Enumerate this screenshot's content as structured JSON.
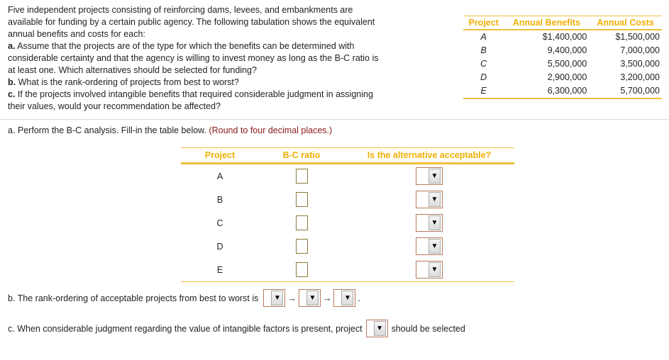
{
  "intro": {
    "lines": [
      "Five independent projects consisting of reinforcing dams, levees, and embankments are",
      "available for funding by a certain public agency. The following tabulation shows the equivalent",
      "annual benefits and costs for each:"
    ],
    "a_label": "a.",
    "a_text1": " Assume that the projects are of the type for which the benefits can be determined with",
    "a_text2": "considerable certainty and that the agency is willing to invest money as long as the B-C ratio is",
    "a_text3": "at least one. Which alternatives should be selected for funding?",
    "b_label": "b.",
    "b_text": " What is the rank-ordering of projects from best to worst?",
    "c_label": "c.",
    "c_text1": " If the projects involved intangible benefits that required considerable judgment in assigning",
    "c_text2": "their values, would your recommendation be affected?"
  },
  "given_table": {
    "headers": [
      "Project",
      "Annual Benefits",
      "Annual Costs"
    ],
    "rows": [
      [
        "A",
        "$1,400,000",
        "$1,500,000"
      ],
      [
        "B",
        "9,400,000",
        "7,000,000"
      ],
      [
        "C",
        "5,500,000",
        "3,500,000"
      ],
      [
        "D",
        "2,900,000",
        "3,200,000"
      ],
      [
        "E",
        "6,300,000",
        "5,700,000"
      ]
    ]
  },
  "part_a": {
    "text": "a. Perform the B-C analysis. Fill-in the table below.",
    "note": "(Round to four decimal places.)"
  },
  "answer_table": {
    "headers": [
      "Project",
      "B-C ratio",
      "Is the alternative acceptable?"
    ],
    "projects": [
      "A",
      "B",
      "C",
      "D",
      "E"
    ]
  },
  "part_b": {
    "text": "b. The rank-ordering of acceptable projects from best to worst is",
    "arrow": "→",
    "end": "."
  },
  "part_c": {
    "text": "c. When considerable judgment regarding the value of intangible factors is present, project",
    "after": "should be selected"
  },
  "dropdown_glyph": "▼",
  "colors": {
    "header": "#f0b000",
    "note": "#8b1a1a"
  }
}
